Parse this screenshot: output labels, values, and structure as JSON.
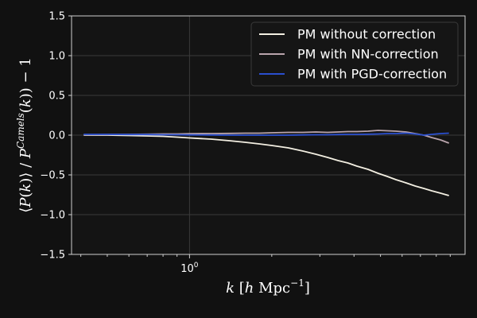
{
  "chart_data": {
    "type": "line",
    "xscale": "log",
    "xlim": [
      0.37,
      10.2
    ],
    "ylim": [
      -1.5,
      1.5
    ],
    "yticks": [
      1.5,
      1.0,
      0.5,
      0.0,
      -0.5,
      -1.0,
      -1.5
    ],
    "ytick_labels": [
      "1.5",
      "1.0",
      "0.5",
      "0.0",
      "−0.5",
      "−1.0",
      "−1.5"
    ],
    "xtick_label": "10",
    "xtick_label_exp": "0",
    "xlabel": "k [h Mpc⁻¹]",
    "ylabel": "⟨P(k)⟩ / P^Camels(k)) − 1",
    "grid": true,
    "legend_position": "top-right",
    "x": [
      0.41,
      0.5,
      0.6,
      0.7,
      0.8,
      0.9,
      1.0,
      1.2,
      1.4,
      1.6,
      1.8,
      2.0,
      2.3,
      2.6,
      2.9,
      3.2,
      3.5,
      3.8,
      4.1,
      4.5,
      4.9,
      5.3,
      5.7,
      6.2,
      6.7,
      7.2,
      7.7,
      8.3,
      8.9
    ],
    "series": [
      {
        "name": "PM without correction",
        "color": "#f3efe2",
        "values": [
          0.0,
          0.0,
          -0.005,
          -0.01,
          -0.015,
          -0.025,
          -0.035,
          -0.05,
          -0.07,
          -0.09,
          -0.11,
          -0.13,
          -0.16,
          -0.2,
          -0.24,
          -0.28,
          -0.32,
          -0.35,
          -0.39,
          -0.43,
          -0.48,
          -0.52,
          -0.56,
          -0.6,
          -0.64,
          -0.67,
          -0.7,
          -0.73,
          -0.76
        ]
      },
      {
        "name": "PM with NN-correction",
        "color": "#b9a4ac",
        "values": [
          0.005,
          0.008,
          0.01,
          0.012,
          0.015,
          0.015,
          0.018,
          0.02,
          0.022,
          0.025,
          0.025,
          0.03,
          0.035,
          0.035,
          0.04,
          0.035,
          0.04,
          0.045,
          0.045,
          0.05,
          0.06,
          0.055,
          0.05,
          0.04,
          0.02,
          0.0,
          -0.03,
          -0.06,
          -0.1
        ]
      },
      {
        "name": "PM with PGD-correction",
        "color": "#2a4fcf",
        "values": [
          0.01,
          0.01,
          0.008,
          0.008,
          0.005,
          0.005,
          0.003,
          0.002,
          0.0,
          0.0,
          0.0,
          0.0,
          0.0,
          0.003,
          0.005,
          0.005,
          0.008,
          0.01,
          0.01,
          0.012,
          0.015,
          0.02,
          0.02,
          0.025,
          0.015,
          0.0,
          0.01,
          0.02,
          0.025
        ]
      }
    ]
  }
}
